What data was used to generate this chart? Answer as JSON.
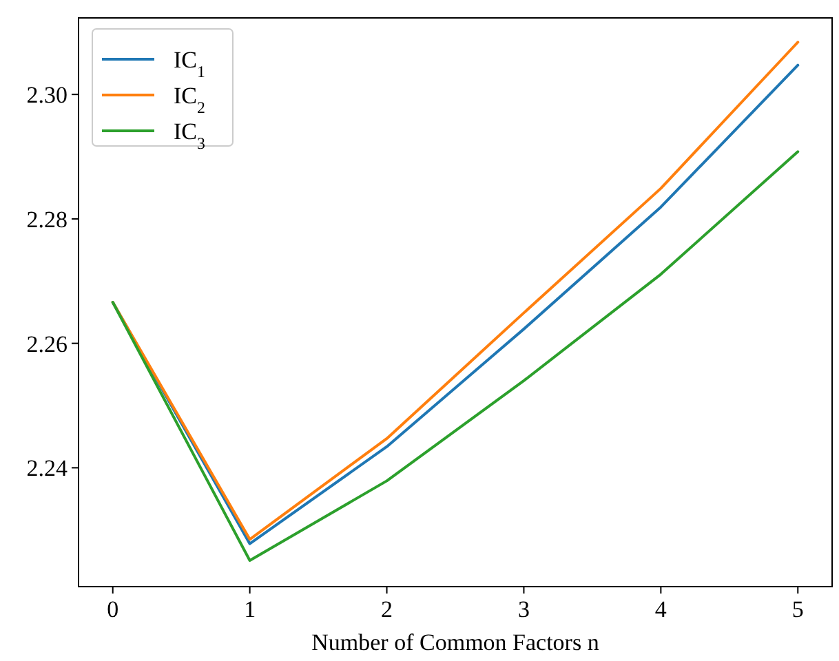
{
  "chart_data": {
    "type": "line",
    "xlabel": "Number of Common Factors n",
    "x": [
      0,
      1,
      2,
      3,
      4,
      5
    ],
    "series": [
      {
        "name": "IC$_{1}$",
        "color": "#1f77b4",
        "values": [
          2.2666,
          2.2278,
          2.2434,
          2.2623,
          2.2819,
          2.3047
        ]
      },
      {
        "name": "IC$_{2}$",
        "color": "#ff7f0e",
        "values": [
          2.2666,
          2.2285,
          2.2447,
          2.2649,
          2.2849,
          2.3084
        ]
      },
      {
        "name": "IC$_{3}$",
        "color": "#2ca02c",
        "values": [
          2.2666,
          2.2251,
          2.2379,
          2.254,
          2.2711,
          2.2908
        ]
      }
    ],
    "xlim": [
      -0.25,
      5.25
    ],
    "xticks": [
      0,
      1,
      2,
      3,
      4,
      5
    ],
    "ylim": [
      2.2209,
      2.3123
    ],
    "yticks": [
      2.24,
      2.26,
      2.28,
      {
        "value": 2.3,
        "label": "2.30"
      }
    ],
    "legend": "top left",
    "grid": false,
    "marker": "none",
    "line_style": "solid"
  }
}
